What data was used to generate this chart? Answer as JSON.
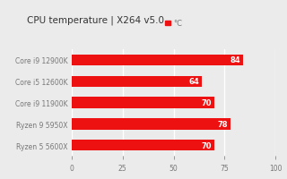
{
  "title": "CPU temperature | X264 v5.0",
  "categories": [
    "Core i9 12900K",
    "Core i5 12600K",
    "Core i9 11900K",
    "Ryzen 9 5950X",
    "Ryzen 5 5600X"
  ],
  "values": [
    84,
    64,
    70,
    78,
    70
  ],
  "bar_color": "#ee1111",
  "label_color": "#ffffff",
  "legend_label": "°C",
  "xlim": [
    0,
    100
  ],
  "xticks": [
    0,
    25,
    50,
    75,
    100
  ],
  "background_color": "#ebebeb",
  "plot_bg_color": "#ebebeb",
  "title_fontsize": 7.5,
  "tick_fontsize": 5.5,
  "label_fontsize": 5.5,
  "bar_label_fontsize": 6,
  "legend_fontsize": 6,
  "title_color": "#333333",
  "tick_color": "#777777",
  "grid_color": "#ffffff",
  "bar_height": 0.52
}
